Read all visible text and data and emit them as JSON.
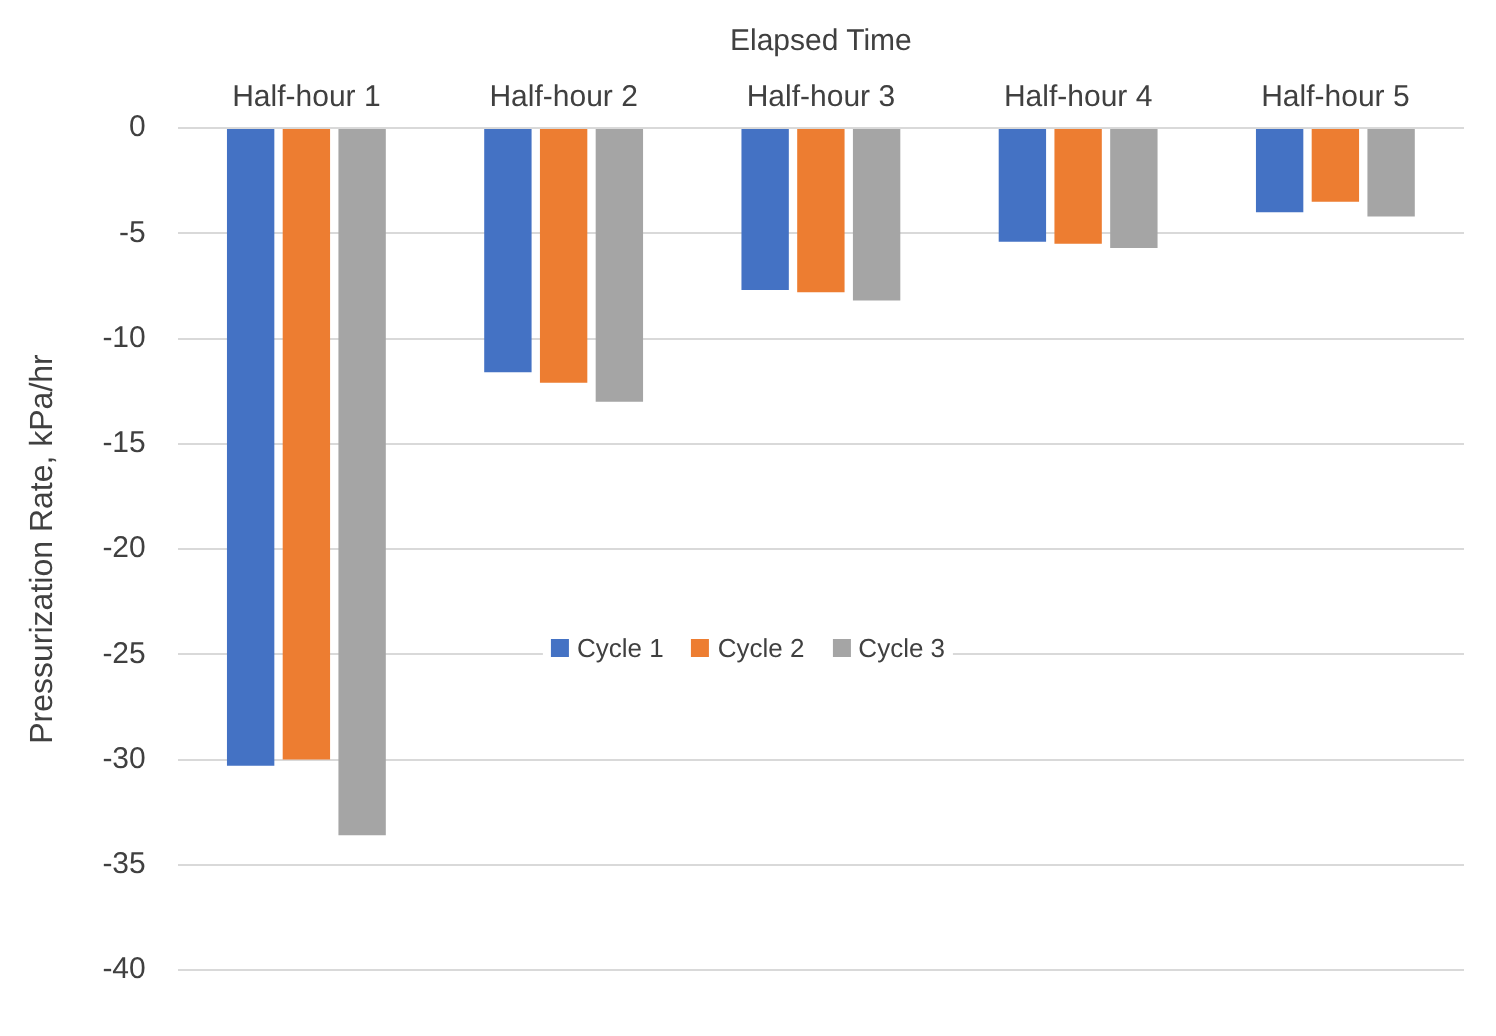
{
  "chart_data": {
    "type": "bar",
    "xlabel": "Elapsed Time",
    "ylabel": "Pressurization Rate, kPa/hr",
    "categories": [
      "Half-hour 1",
      "Half-hour 2",
      "Half-hour 3",
      "Half-hour 4",
      "Half-hour 5"
    ],
    "series": [
      {
        "name": "Cycle 1",
        "color": "#4472c4",
        "values": [
          -30.3,
          -11.6,
          -7.7,
          -5.4,
          -4.0
        ]
      },
      {
        "name": "Cycle 2",
        "color": "#ed7d31",
        "values": [
          -30.0,
          -12.1,
          -7.8,
          -5.5,
          -3.5
        ]
      },
      {
        "name": "Cycle 3",
        "color": "#a5a5a5",
        "values": [
          -33.6,
          -13.0,
          -8.2,
          -5.7,
          -4.2
        ]
      }
    ],
    "ylim": [
      -40,
      0
    ],
    "yticks": [
      0,
      -5,
      -10,
      -15,
      -20,
      -25,
      -30,
      -35,
      -40
    ],
    "grid": "y",
    "legend": "center"
  }
}
